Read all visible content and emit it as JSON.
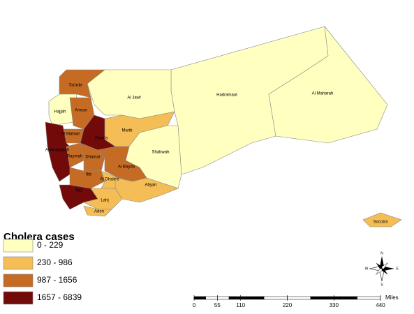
{
  "legend": {
    "title": "Cholera cases",
    "items": [
      {
        "label": "0 - 229",
        "color": "#ffffc0"
      },
      {
        "label": "230 - 986",
        "color": "#f5bd55"
      },
      {
        "label": "987 - 1656",
        "color": "#c56b24"
      },
      {
        "label": "1657 - 6839",
        "color": "#730a0a"
      }
    ]
  },
  "regions": [
    {
      "name": "Hadramaut",
      "color": "#ffffc0"
    },
    {
      "name": "Al Maharah",
      "color": "#ffffc0"
    },
    {
      "name": "Al Jawf",
      "color": "#ffffc0"
    },
    {
      "name": "Sa'ada",
      "color": "#c56b24"
    },
    {
      "name": "Hajjah",
      "color": "#ffffc0"
    },
    {
      "name": "Amran",
      "color": "#c56b24"
    },
    {
      "name": "Marib",
      "color": "#f5bd55"
    },
    {
      "name": "Shabwah",
      "color": "#ffffc0"
    },
    {
      "name": "Sana'a",
      "color": "#730a0a"
    },
    {
      "name": "Al Mahwit",
      "color": "#c56b24"
    },
    {
      "name": "Al Hudaydah",
      "color": "#730a0a"
    },
    {
      "name": "Raymah",
      "color": "#c56b24"
    },
    {
      "name": "Dhamar",
      "color": "#c56b24"
    },
    {
      "name": "Ibb",
      "color": "#c56b24"
    },
    {
      "name": "Al Bayda",
      "color": "#c56b24"
    },
    {
      "name": "Al Dhale'e",
      "color": "#f5bd55"
    },
    {
      "name": "Taiz",
      "color": "#730a0a"
    },
    {
      "name": "Lahj",
      "color": "#f5bd55"
    },
    {
      "name": "Abyan",
      "color": "#f5bd55"
    },
    {
      "name": "Aden",
      "color": "#f5bd55"
    },
    {
      "name": "Socotra",
      "color": "#f5bd55"
    }
  ],
  "compass": {
    "n": "N",
    "s": "S",
    "e": "E",
    "w": "W"
  },
  "scale": {
    "unit": "Miles",
    "ticks": [
      0,
      55,
      110,
      220,
      330,
      440
    ]
  }
}
